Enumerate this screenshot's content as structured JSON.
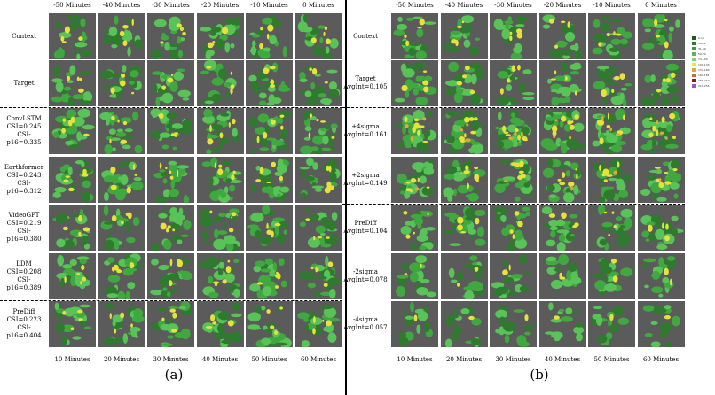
{
  "panel_a": {
    "caption": "(a)",
    "column_headers": [
      "-50 Minutes",
      "-40 Minutes",
      "-30 Minutes",
      "-20 Minutes",
      "-10 Minutes",
      "0 Minutes"
    ],
    "column_footers": [
      "10 Minutes",
      "20 Minutes",
      "30 Minutes",
      "40 Minutes",
      "50 Minutes",
      "60 Minutes"
    ],
    "rows": [
      {
        "lines": [
          "Context"
        ],
        "intensity": 0.45
      },
      {
        "lines": [
          "Target"
        ],
        "intensity": 0.55
      },
      {
        "lines": [
          "ConvLSTM",
          "CSI=0.245",
          "CSI-p16=0.335"
        ],
        "intensity": 0.6
      },
      {
        "lines": [
          "Earthformer",
          "CSI=0.243",
          "CSI-p16=0.312"
        ],
        "intensity": 0.65
      },
      {
        "lines": [
          "VideoGPT",
          "CSI=0.219",
          "CSI-p16=0.380"
        ],
        "intensity": 0.5
      },
      {
        "lines": [
          "LDM",
          "CSI=0.208",
          "CSI-p16=0.389"
        ],
        "intensity": 0.6
      },
      {
        "lines": [
          "PreDiff",
          "CSI=0.223",
          "CSI-p16=0.404"
        ],
        "intensity": 0.5
      }
    ]
  },
  "panel_b": {
    "caption": "(b)",
    "column_headers": [
      "-50 Minutes",
      "-40 Minutes",
      "-30 Minutes",
      "-20 Minutes",
      "-10 Minutes",
      "0 Minutes"
    ],
    "column_footers": [
      "10 Minutes",
      "20 Minutes",
      "30 Minutes",
      "40 Minutes",
      "50 Minutes",
      "60 Minutes"
    ],
    "rows": [
      {
        "lines": [
          "Context"
        ],
        "intensity": 0.45
      },
      {
        "lines": [
          "Target",
          "AvgInt=0.105"
        ],
        "intensity": 0.5
      },
      {
        "lines": [
          "+4sigma",
          "AvgInt=0.161"
        ],
        "intensity": 0.85
      },
      {
        "lines": [
          "+2sigma",
          "AvgInt=0.149"
        ],
        "intensity": 0.7
      },
      {
        "lines": [
          "PreDiff",
          "AvgInt=0.104"
        ],
        "intensity": 0.45
      },
      {
        "lines": [
          "-2sigma",
          "AvgInt=0.078"
        ],
        "intensity": 0.3
      },
      {
        "lines": [
          "-4sigma",
          "AvgInt=0.057"
        ],
        "intensity": 0.2
      }
    ]
  },
  "legend": {
    "entries": [
      {
        "label": "0-16",
        "color": "#1f5a1f"
      },
      {
        "label": "16-31",
        "color": "#2e7d2e"
      },
      {
        "label": "31-59",
        "color": "#3f9a3f"
      },
      {
        "label": "59-74",
        "color": "#5cb85c"
      },
      {
        "label": "74-100",
        "color": "#7fd07f"
      },
      {
        "label": "100-133",
        "color": "#e8e83a"
      },
      {
        "label": "133-160",
        "color": "#e8a53a"
      },
      {
        "label": "160-181",
        "color": "#d46a2a"
      },
      {
        "label": "181-219",
        "color": "#8b1a1a"
      },
      {
        "label": "219-255",
        "color": "#9b4fd6"
      }
    ]
  },
  "colors": {
    "background_tile": "#5b5b5b",
    "green_dark": "#2f7a2f",
    "green_mid": "#3fa83f",
    "green_light": "#58c458",
    "yellow": "#e6e23a",
    "orange": "#e8a53a"
  }
}
